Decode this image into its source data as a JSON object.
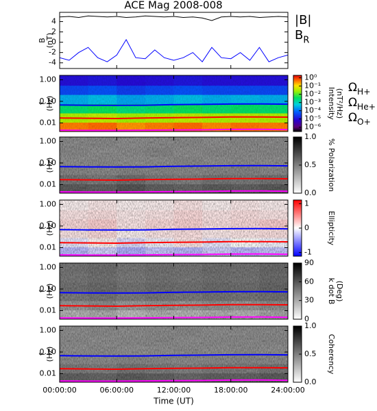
{
  "chart_data": [
    {
      "type": "line",
      "title": "ACE Mag 2008-008",
      "ylabel": [
        "B",
        "(nT)"
      ],
      "xlim": [
        0,
        24
      ],
      "ylim": [
        -5.1,
        5.8
      ],
      "yticks": [
        -4,
        -2,
        0,
        2,
        4
      ],
      "x": [
        0,
        1,
        2,
        3,
        4,
        5,
        6,
        7,
        8,
        9,
        10,
        11,
        12,
        13,
        14,
        15,
        16,
        17,
        18,
        19,
        20,
        21,
        22,
        23,
        24
      ],
      "series": [
        {
          "name": "|B|",
          "color": "#000000",
          "values": [
            4.9,
            5.0,
            4.8,
            5.1,
            5.0,
            4.9,
            5.0,
            4.8,
            4.9,
            5.1,
            5.0,
            4.9,
            5.0,
            4.8,
            4.9,
            4.7,
            4.2,
            4.9,
            5.0,
            4.9,
            5.0,
            4.8,
            4.9,
            5.0,
            4.9
          ]
        },
        {
          "name": "BR",
          "color": "#0000ff",
          "values": [
            -3,
            -3.5,
            -2,
            -1,
            -3,
            -3.8,
            -2.5,
            0.5,
            -3,
            -3.2,
            -1.5,
            -3,
            -3.5,
            -3,
            -2,
            -3.8,
            -1,
            -3,
            -3.2,
            -2,
            -3.5,
            -1,
            -3.8,
            -3,
            -2.5
          ]
        }
      ]
    },
    {
      "type": "heatmap",
      "ylabel": [
        "f",
        "(Hz)"
      ],
      "ylog": true,
      "xlim": [
        0,
        24
      ],
      "ylim": [
        0.004,
        1.6
      ],
      "yticks": [
        0.01,
        {
          "value": 0.1,
          "label": "0.10"
        },
        {
          "value": 1,
          "label": "1.00"
        }
      ],
      "xbins": [
        0,
        3,
        6,
        9,
        12,
        15,
        18,
        21,
        24
      ],
      "ybins": [
        0.004,
        0.0107,
        0.0287,
        0.077,
        0.206,
        0.55,
        1.6
      ],
      "z": [
        [
          0.4,
          0.5,
          0.3,
          0.4,
          0.5,
          0.35,
          0.45,
          0.4
        ],
        [
          0.03,
          0.04,
          0.025,
          0.03,
          0.04,
          0.03,
          0.035,
          0.03
        ],
        [
          0.003,
          0.004,
          0.0025,
          0.003,
          0.004,
          0.003,
          0.0035,
          0.003
        ],
        [
          0.0003,
          0.0004,
          0.00025,
          0.0003,
          0.0004,
          0.0003,
          0.00035,
          0.0003
        ],
        [
          4e-05,
          5e-05,
          3e-05,
          4e-05,
          5e-05,
          4e-05,
          4e-05,
          4e-05
        ],
        [
          1e-05,
          1.2e-05,
          9e-06,
          1e-05,
          1.2e-05,
          1e-05,
          1e-05,
          1e-05
        ]
      ],
      "colormap": "rainbow",
      "zlog": true,
      "zlim": [
        3e-07,
        2
      ],
      "zticks": [
        {
          "value": 1,
          "label": "10⁰"
        },
        {
          "value": 0.1,
          "label": "10⁻¹"
        },
        {
          "value": 0.01,
          "label": "10⁻²"
        },
        {
          "value": 0.001,
          "label": "10⁻³"
        },
        {
          "value": 0.0001,
          "label": "10⁻⁴"
        },
        {
          "value": 1e-05,
          "label": "10⁻⁵"
        },
        {
          "value": 1e-06,
          "label": "10⁻⁶"
        }
      ],
      "zlabel": [
        "Intensity",
        "(nT²/Hz)"
      ],
      "x": [
        0,
        3,
        6,
        9,
        12,
        15,
        18,
        21,
        24
      ],
      "series": [
        {
          "name": "ΩH+",
          "color": "#0000ff",
          "values": [
            0.068,
            0.066,
            0.065,
            0.066,
            0.07,
            0.072,
            0.075,
            0.076,
            0.074
          ]
        },
        {
          "name": "ΩHe+",
          "color": "#ff0000",
          "values": [
            0.017,
            0.0165,
            0.016,
            0.017,
            0.0175,
            0.018,
            0.019,
            0.019,
            0.0185
          ]
        },
        {
          "name": "ΩO+",
          "color": "#ff00ff",
          "values": [
            0.0046,
            0.0045,
            0.0045,
            0.0046,
            0.0047,
            0.0048,
            0.005,
            0.0051,
            0.0049
          ]
        }
      ]
    },
    {
      "type": "heatmap",
      "ylabel": [
        "f",
        "(Hz)"
      ],
      "ylog": true,
      "xlim": [
        0,
        24
      ],
      "ylim": [
        0.004,
        1.6
      ],
      "yticks": [
        0.01,
        {
          "value": 0.1,
          "label": "0.10"
        },
        {
          "value": 1,
          "label": "1.00"
        }
      ],
      "xbins": [
        0,
        3,
        6,
        9,
        12,
        15,
        18,
        21,
        24
      ],
      "ybins": [
        0.004,
        0.0107,
        0.0287,
        0.077,
        0.206,
        0.55,
        1.6
      ],
      "z": [
        [
          0.62,
          0.6,
          0.65,
          0.6,
          0.58,
          0.62,
          0.6,
          0.63
        ],
        [
          0.52,
          0.5,
          0.55,
          0.5,
          0.48,
          0.52,
          0.5,
          0.53
        ],
        [
          0.45,
          0.44,
          0.46,
          0.45,
          0.44,
          0.45,
          0.46,
          0.44
        ],
        [
          0.42,
          0.43,
          0.41,
          0.42,
          0.44,
          0.42,
          0.43,
          0.42
        ],
        [
          0.44,
          0.42,
          0.43,
          0.45,
          0.42,
          0.44,
          0.43,
          0.44
        ],
        [
          0.43,
          0.44,
          0.42,
          0.43,
          0.44,
          0.42,
          0.44,
          0.43
        ]
      ],
      "colormap": "gray",
      "zlim": [
        0,
        1
      ],
      "zticks": [
        {
          "value": 0,
          "label": "0.0"
        },
        0.5,
        {
          "value": 1,
          "label": "1.0"
        }
      ],
      "zlabel": [
        "% Polarization"
      ],
      "x": [
        0,
        3,
        6,
        9,
        12,
        15,
        18,
        21,
        24
      ],
      "series": [
        {
          "color": "#0000ff",
          "values": [
            0.068,
            0.066,
            0.065,
            0.066,
            0.07,
            0.072,
            0.075,
            0.076,
            0.074
          ]
        },
        {
          "color": "#ff0000",
          "values": [
            0.017,
            0.0165,
            0.016,
            0.017,
            0.0175,
            0.018,
            0.019,
            0.019,
            0.0185
          ]
        },
        {
          "color": "#ff00ff",
          "values": [
            0.0046,
            0.0045,
            0.0045,
            0.0046,
            0.0047,
            0.0048,
            0.005,
            0.0051,
            0.0049
          ]
        }
      ]
    },
    {
      "type": "heatmap",
      "ylabel": [
        "f",
        "(Hz)"
      ],
      "ylog": true,
      "xlim": [
        0,
        24
      ],
      "ylim": [
        0.004,
        1.6
      ],
      "yticks": [
        0.01,
        {
          "value": 0.1,
          "label": "0.10"
        },
        {
          "value": 1,
          "label": "1.00"
        }
      ],
      "xbins": [
        0,
        3,
        6,
        9,
        12,
        15,
        18,
        21,
        24
      ],
      "ybins": [
        0.004,
        0.0107,
        0.0287,
        0.077,
        0.206,
        0.55,
        1.6
      ],
      "z": [
        [
          -0.3,
          -0.2,
          -0.35,
          -0.25,
          -0.3,
          -0.2,
          -0.3,
          -0.25
        ],
        [
          -0.1,
          0.05,
          -0.15,
          -0.05,
          0.1,
          -0.1,
          0.0,
          -0.05
        ],
        [
          0.1,
          0.15,
          0.05,
          0.1,
          0.12,
          0.08,
          0.1,
          0.12
        ],
        [
          0.15,
          0.2,
          0.1,
          0.15,
          0.18,
          0.12,
          0.15,
          0.2
        ],
        [
          0.1,
          0.12,
          0.08,
          0.1,
          0.15,
          0.1,
          0.12,
          0.1
        ],
        [
          0.05,
          0.08,
          0.05,
          0.06,
          0.1,
          0.05,
          0.08,
          0.06
        ]
      ],
      "colormap": "bwr",
      "zlim": [
        -1.15,
        1.15
      ],
      "zticks": [
        -1,
        0,
        1
      ],
      "zlabel": [
        "Ellipticity"
      ],
      "x": [
        0,
        3,
        6,
        9,
        12,
        15,
        18,
        21,
        24
      ],
      "series": [
        {
          "color": "#0000ff",
          "values": [
            0.068,
            0.066,
            0.065,
            0.066,
            0.07,
            0.072,
            0.075,
            0.076,
            0.074
          ]
        },
        {
          "color": "#ff0000",
          "values": [
            0.017,
            0.0165,
            0.016,
            0.017,
            0.0175,
            0.018,
            0.019,
            0.019,
            0.0185
          ]
        },
        {
          "color": "#ff00ff",
          "values": [
            0.0046,
            0.0045,
            0.0045,
            0.0046,
            0.0047,
            0.0048,
            0.005,
            0.0051,
            0.0049
          ]
        }
      ]
    },
    {
      "type": "heatmap",
      "ylabel": [
        "f",
        "(Hz)"
      ],
      "ylog": true,
      "xlim": [
        0,
        24
      ],
      "ylim": [
        0.004,
        1.6
      ],
      "yticks": [
        0.01,
        {
          "value": 0.1,
          "label": "0.10"
        },
        {
          "value": 1,
          "label": "1.00"
        }
      ],
      "xbins": [
        0,
        3,
        6,
        9,
        12,
        15,
        18,
        21,
        24
      ],
      "ybins": [
        0.004,
        0.0107,
        0.0287,
        0.077,
        0.206,
        0.55,
        1.6
      ],
      "z": [
        [
          25,
          28,
          22,
          26,
          24,
          27,
          25,
          30
        ],
        [
          35,
          38,
          33,
          36,
          34,
          37,
          35,
          38
        ],
        [
          45,
          47,
          44,
          46,
          45,
          47,
          46,
          48
        ],
        [
          48,
          50,
          47,
          49,
          48,
          50,
          49,
          52
        ],
        [
          46,
          48,
          45,
          47,
          46,
          48,
          47,
          50
        ],
        [
          47,
          49,
          46,
          48,
          47,
          49,
          48,
          51
        ]
      ],
      "colormap": "gray",
      "zlim": [
        0,
        90
      ],
      "zticks": [
        0,
        30,
        60,
        90
      ],
      "zlabel": [
        "k dot B",
        "(Deg)"
      ],
      "x": [
        0,
        3,
        6,
        9,
        12,
        15,
        18,
        21,
        24
      ],
      "series": [
        {
          "color": "#0000ff",
          "values": [
            0.068,
            0.066,
            0.065,
            0.066,
            0.07,
            0.072,
            0.075,
            0.076,
            0.074
          ]
        },
        {
          "color": "#ff0000",
          "values": [
            0.017,
            0.0165,
            0.016,
            0.017,
            0.0175,
            0.018,
            0.019,
            0.019,
            0.0185
          ]
        },
        {
          "color": "#ff00ff",
          "values": [
            0.0046,
            0.0045,
            0.0045,
            0.0046,
            0.0047,
            0.0048,
            0.005,
            0.0051,
            0.0049
          ]
        }
      ]
    },
    {
      "type": "heatmap",
      "ylabel": [
        "f",
        "(Hz)"
      ],
      "ylog": true,
      "xlim": [
        0,
        24
      ],
      "ylim": [
        0.004,
        1.6
      ],
      "yticks": [
        0.01,
        {
          "value": 0.1,
          "label": "0.10"
        },
        {
          "value": 1,
          "label": "1.00"
        }
      ],
      "xbins": [
        0,
        3,
        6,
        9,
        12,
        15,
        18,
        21,
        24
      ],
      "ybins": [
        0.004,
        0.0107,
        0.0287,
        0.077,
        0.206,
        0.55,
        1.6
      ],
      "z": [
        [
          0.6,
          0.58,
          0.62,
          0.6,
          0.57,
          0.6,
          0.59,
          0.62
        ],
        [
          0.5,
          0.48,
          0.52,
          0.5,
          0.47,
          0.5,
          0.49,
          0.52
        ],
        [
          0.44,
          0.43,
          0.45,
          0.44,
          0.43,
          0.44,
          0.45,
          0.44
        ],
        [
          0.42,
          0.43,
          0.41,
          0.42,
          0.43,
          0.42,
          0.43,
          0.42
        ],
        [
          0.43,
          0.42,
          0.43,
          0.44,
          0.42,
          0.43,
          0.43,
          0.44
        ],
        [
          0.42,
          0.43,
          0.42,
          0.43,
          0.44,
          0.42,
          0.43,
          0.43
        ]
      ],
      "colormap": "gray",
      "zlim": [
        0,
        1
      ],
      "zticks": [
        {
          "value": 0,
          "label": "0.0"
        },
        0.5,
        {
          "value": 1,
          "label": "1.0"
        }
      ],
      "zlabel": [
        "Coherency"
      ],
      "x": [
        0,
        3,
        6,
        9,
        12,
        15,
        18,
        21,
        24
      ],
      "series": [
        {
          "color": "#0000ff",
          "values": [
            0.068,
            0.066,
            0.065,
            0.066,
            0.07,
            0.072,
            0.075,
            0.076,
            0.074
          ]
        },
        {
          "color": "#ff0000",
          "values": [
            0.017,
            0.0165,
            0.016,
            0.017,
            0.0175,
            0.018,
            0.019,
            0.019,
            0.0185
          ]
        },
        {
          "color": "#ff00ff",
          "values": [
            0.0046,
            0.0045,
            0.0045,
            0.0046,
            0.0047,
            0.0048,
            0.005,
            0.0051,
            0.0049
          ]
        }
      ],
      "xticks": [
        {
          "value": 0,
          "label": "00:00:00"
        },
        {
          "value": 6,
          "label": "06:00:00"
        },
        {
          "value": 12,
          "label": "12:00:00"
        },
        {
          "value": 18,
          "label": "18:00:00"
        },
        {
          "value": 24,
          "label": "24:00:00"
        }
      ],
      "xlabel": "Time (UT)"
    }
  ]
}
